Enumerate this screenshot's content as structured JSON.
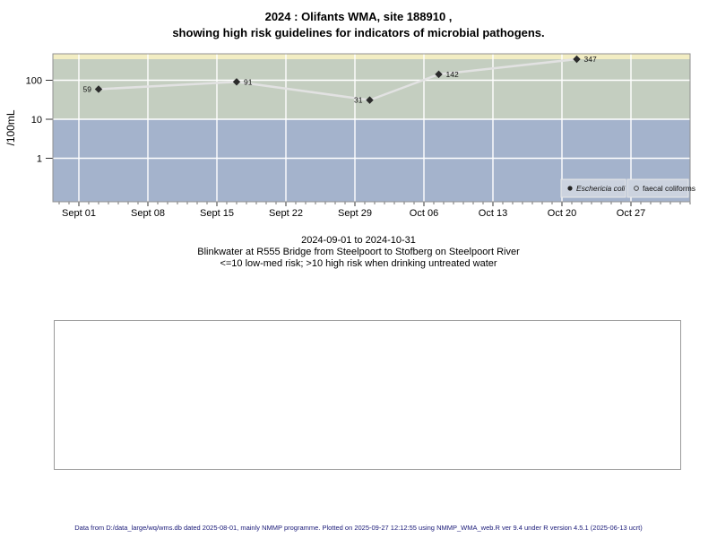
{
  "title": {
    "line1": "2024 : Olifants WMA, site 188910 ,",
    "line2": "showing high risk guidelines for indicators of microbial pathogens."
  },
  "subtitle": {
    "date_range": "2024-09-01 to 2024-10-31",
    "station": "Blinkwater at R555 Bridge from Steelpoort to Stofberg on Steelpoort River",
    "risk_note": "<=10 low-med risk; >10 high risk when drinking untreated water"
  },
  "footer": {
    "text": "Data from D:/data_large/wq/wms.db dated 2025-08-01, mainly NMMP programme. Plotted on 2025-09-27 12:12:55 using NMMP_WMA_web.R ver 9.4 under R version 4.5.1 (2025-06-13 ucrt)"
  },
  "chart_data": {
    "type": "line",
    "title": "",
    "xlabel": "",
    "ylabel": "/100mL",
    "y_scale": "log10",
    "y_ticks": [
      1,
      10,
      100
    ],
    "y_range_approx": [
      0.08,
      430
    ],
    "x_tick_labels": [
      "Sept 01",
      "Sept 08",
      "Sept 15",
      "Sept 22",
      "Sept 29",
      "Oct 06",
      "Oct 13",
      "Oct 20",
      "Oct 27"
    ],
    "x_tick_day_offsets": [
      0,
      7,
      14,
      21,
      28,
      35,
      42,
      49,
      56
    ],
    "minor_ticks": "daily",
    "grid": "white lines on shaded risk bands",
    "legend_position": "bottom-right",
    "risk_threshold": 10,
    "risk_bands": [
      {
        "name": "top-strip",
        "color_key": "band_top"
      },
      {
        "name": "high-risk (>10)",
        "color_key": "band_high"
      },
      {
        "name": "low-med-risk (<=10)",
        "color_key": "band_low"
      }
    ],
    "series": [
      {
        "name": "Eschericia coli",
        "marker": "filled-diamond",
        "dates": [
          "2024-09-03",
          "2024-09-17",
          "2024-09-30",
          "2024-10-07",
          "2024-10-21"
        ],
        "day_offsets": [
          2,
          16,
          29.5,
          36.5,
          50.5
        ],
        "values": [
          59,
          91,
          31,
          142,
          347
        ],
        "label_sides": [
          "left",
          "right",
          "left",
          "right",
          "right"
        ]
      },
      {
        "name": "faecal coliforms",
        "marker": "open-circle",
        "dates": [],
        "day_offsets": [],
        "values": [],
        "label_sides": []
      }
    ]
  },
  "colors": {
    "band_top": "#f2edc3",
    "band_high": "#c4cec0",
    "band_low": "#a4b3cc",
    "gridline": "#ffffff",
    "line": "#e2e2e2",
    "marker": "#2b2b2b",
    "legend_bg": "#ccd3df",
    "legend_border": "#e8e8e8",
    "plot_border": "#909090"
  }
}
